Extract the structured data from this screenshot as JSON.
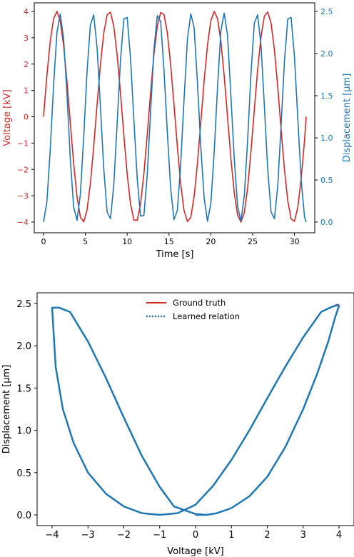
{
  "colors": {
    "voltage": "#d62728",
    "displacement": "#1f77b4",
    "ground_truth": "#d62728",
    "learned": "#1f77b4",
    "axis": "#000000"
  },
  "chart_data": [
    {
      "type": "line",
      "xlabel": "Time [s]",
      "ylabel_left": "Voltage [kV]",
      "ylabel_right": "Displacement [μm]",
      "xlim": [
        0,
        31.4
      ],
      "ylim_left": [
        -4,
        4
      ],
      "ylim_right": [
        0,
        2.5
      ],
      "xticks": [
        0,
        5,
        10,
        15,
        20,
        25,
        30
      ],
      "xtick_labels": [
        "0",
        "5",
        "10",
        "15",
        "20",
        "25",
        "30"
      ],
      "yticks_left": [
        4,
        3,
        2,
        1,
        0,
        -1,
        -2,
        -3,
        -4
      ],
      "ytick_labels_left": [
        "4",
        "3",
        "2",
        "1",
        "0",
        "−1",
        "−2",
        "−3",
        "−4"
      ],
      "yticks_right": [
        2.5,
        2.0,
        1.5,
        1.0,
        0.5,
        0.0
      ],
      "ytick_labels_right": [
        "2.5",
        "2.0",
        "1.5",
        "1.0",
        "0.5",
        "0.0"
      ],
      "grid": false,
      "series": [
        {
          "axis": "left",
          "color": "#d62728",
          "x": [
            0,
            0.4,
            0.8,
            1.2,
            1.6,
            2.0,
            2.4,
            2.8,
            3.2,
            3.6,
            4.0,
            4.4,
            4.8,
            5.2,
            5.6,
            6.0,
            6.4,
            6.8,
            7.2,
            7.6,
            8.0,
            8.4,
            8.8,
            9.2,
            9.6,
            10.0,
            10.4,
            10.8,
            11.2,
            11.6,
            12.0,
            12.4,
            12.8,
            13.2,
            13.6,
            14.0,
            14.4,
            14.8,
            15.2,
            15.6,
            16.0,
            16.4,
            16.8,
            17.2,
            17.6,
            18.0,
            18.4,
            18.8,
            19.2,
            19.6,
            20.0,
            20.4,
            20.8,
            21.2,
            21.6,
            22.0,
            22.4,
            22.8,
            23.2,
            23.6,
            24.0,
            24.4,
            24.8,
            25.2,
            25.6,
            26.0,
            26.4,
            26.8,
            27.2,
            27.6,
            28.0,
            28.4,
            28.8,
            29.2,
            29.6,
            30.0,
            30.4,
            30.8,
            31.2,
            31.4
          ],
          "values": [
            0.0,
            1.56,
            2.87,
            3.73,
            4.0,
            3.64,
            2.71,
            1.34,
            -0.23,
            -1.77,
            -3.03,
            -3.81,
            -3.99,
            -3.55,
            -2.54,
            -1.13,
            0.46,
            1.98,
            3.18,
            3.87,
            3.97,
            3.44,
            2.36,
            0.91,
            -0.69,
            -2.18,
            -3.31,
            -3.92,
            -3.93,
            -3.32,
            -2.17,
            -0.69,
            0.92,
            2.37,
            3.44,
            3.96,
            3.88,
            3.18,
            1.98,
            0.46,
            -1.14,
            -2.55,
            -3.56,
            -3.98,
            -3.82,
            -3.03,
            -1.78,
            -0.23,
            1.35,
            2.71,
            3.65,
            4.0,
            3.73,
            2.87,
            1.56,
            0.0,
            -1.58,
            -2.88,
            -3.73,
            -4.0,
            -3.64,
            -2.7,
            -1.33,
            0.25,
            1.79,
            3.04,
            3.82,
            3.98,
            3.55,
            2.54,
            1.12,
            -0.47,
            -1.99,
            -3.19,
            -3.88,
            -3.97,
            -3.43,
            -2.35,
            -0.9,
            0.0
          ]
        },
        {
          "axis": "right",
          "color": "#1f77b4",
          "x": [
            0,
            0.4,
            0.8,
            1.2,
            1.6,
            2.0,
            2.4,
            2.8,
            3.2,
            3.6,
            4.0,
            4.4,
            4.8,
            5.2,
            5.6,
            6.0,
            6.4,
            6.8,
            7.2,
            7.6,
            8.0,
            8.4,
            8.8,
            9.2,
            9.6,
            10.0,
            10.4,
            10.8,
            11.2,
            11.6,
            12.0,
            12.4,
            12.8,
            13.2,
            13.6,
            14.0,
            14.4,
            14.8,
            15.2,
            15.6,
            16.0,
            16.4,
            16.8,
            17.2,
            17.6,
            18.0,
            18.4,
            18.8,
            19.2,
            19.6,
            20.0,
            20.4,
            20.8,
            21.2,
            21.6,
            22.0,
            22.4,
            22.8,
            23.2,
            23.6,
            24.0,
            24.4,
            24.8,
            25.2,
            25.6,
            26.0,
            26.4,
            26.8,
            27.2,
            27.6,
            28.0,
            28.4,
            28.8,
            29.2,
            29.6,
            30.0,
            30.4,
            30.8,
            31.2,
            31.4
          ],
          "values": [
            0.0,
            0.24,
            0.86,
            1.63,
            2.25,
            2.47,
            2.18,
            1.52,
            0.75,
            0.18,
            0.02,
            0.33,
            1.01,
            1.78,
            2.34,
            2.46,
            2.07,
            1.37,
            0.63,
            0.12,
            0.04,
            0.44,
            1.16,
            1.92,
            2.41,
            2.43,
            1.94,
            1.21,
            0.51,
            0.07,
            0.08,
            0.56,
            1.31,
            2.05,
            2.45,
            2.38,
            1.8,
            1.06,
            0.4,
            0.03,
            0.14,
            0.69,
            1.46,
            2.17,
            2.47,
            2.31,
            1.66,
            0.9,
            0.29,
            0.01,
            0.22,
            0.83,
            1.6,
            2.27,
            2.48,
            2.22,
            1.5,
            0.76,
            0.19,
            0.01,
            0.31,
            0.98,
            1.75,
            2.36,
            2.46,
            2.1,
            1.38,
            0.63,
            0.12,
            0.04,
            0.43,
            1.14,
            1.9,
            2.41,
            2.43,
            1.96,
            1.22,
            0.5,
            0.06,
            0.0
          ]
        }
      ]
    },
    {
      "type": "line",
      "xlabel": "Voltage [kV]",
      "ylabel": "Displacement [μm]",
      "xlim": [
        -4.4,
        4.4
      ],
      "ylim": [
        -0.12,
        2.6
      ],
      "xticks": [
        -4,
        -3,
        -2,
        -1,
        0,
        1,
        2,
        3,
        4
      ],
      "xtick_labels": [
        "−4",
        "−3",
        "−2",
        "−1",
        "0",
        "1",
        "2",
        "3",
        "4"
      ],
      "yticks": [
        0.0,
        0.5,
        1.0,
        1.5,
        2.0,
        2.5
      ],
      "ytick_labels": [
        "0.0",
        "0.5",
        "1.0",
        "1.5",
        "2.0",
        "2.5"
      ],
      "grid": false,
      "legend_position": "top-center",
      "series": [
        {
          "name": "Ground truth",
          "style": "solid",
          "color": "#d62728",
          "x": [
            0.0,
            0.3,
            0.6,
            1.0,
            1.5,
            2.0,
            2.5,
            3.0,
            3.4,
            3.7,
            3.9,
            4.0,
            3.95,
            3.8,
            3.5,
            3.0,
            2.5,
            2.0,
            1.5,
            1.0,
            0.5,
            0.0,
            -0.5,
            -1.0,
            -1.5,
            -2.0,
            -2.5,
            -3.0,
            -3.4,
            -3.7,
            -3.9,
            -4.0,
            -3.8,
            -3.5,
            -3.0,
            -2.5,
            -2.0,
            -1.5,
            -1.0,
            -0.6,
            0.0,
            0.3,
            0.6
          ],
          "values": [
            0.0,
            0.0,
            0.02,
            0.08,
            0.22,
            0.45,
            0.8,
            1.25,
            1.68,
            2.05,
            2.35,
            2.48,
            2.49,
            2.46,
            2.4,
            2.1,
            1.75,
            1.38,
            1.0,
            0.65,
            0.35,
            0.12,
            0.02,
            0.0,
            0.02,
            0.1,
            0.25,
            0.5,
            0.85,
            1.25,
            1.75,
            2.45,
            2.45,
            2.4,
            2.05,
            1.62,
            1.15,
            0.7,
            0.33,
            0.1,
            0.01,
            0.0,
            0.02
          ]
        },
        {
          "name": "Learned relation",
          "style": "dotted",
          "color": "#1f77b4",
          "x": [
            0.0,
            0.3,
            0.6,
            1.0,
            1.5,
            2.0,
            2.5,
            3.0,
            3.4,
            3.7,
            3.9,
            4.0,
            3.95,
            3.8,
            3.5,
            3.0,
            2.5,
            2.0,
            1.5,
            1.0,
            0.5,
            0.0,
            -0.5,
            -1.0,
            -1.5,
            -2.0,
            -2.5,
            -3.0,
            -3.4,
            -3.7,
            -3.9,
            -4.0,
            -3.8,
            -3.5,
            -3.0,
            -2.5,
            -2.0,
            -1.5,
            -1.0,
            -0.6,
            0.0,
            0.3,
            0.6
          ],
          "values": [
            0.0,
            0.0,
            0.02,
            0.08,
            0.22,
            0.45,
            0.8,
            1.25,
            1.68,
            2.05,
            2.35,
            2.47,
            2.48,
            2.46,
            2.4,
            2.1,
            1.75,
            1.38,
            1.0,
            0.65,
            0.35,
            0.12,
            0.02,
            0.0,
            0.02,
            0.1,
            0.25,
            0.5,
            0.85,
            1.25,
            1.75,
            2.45,
            2.45,
            2.4,
            2.05,
            1.62,
            1.15,
            0.7,
            0.33,
            0.1,
            0.01,
            0.0,
            0.02
          ]
        }
      ]
    }
  ]
}
